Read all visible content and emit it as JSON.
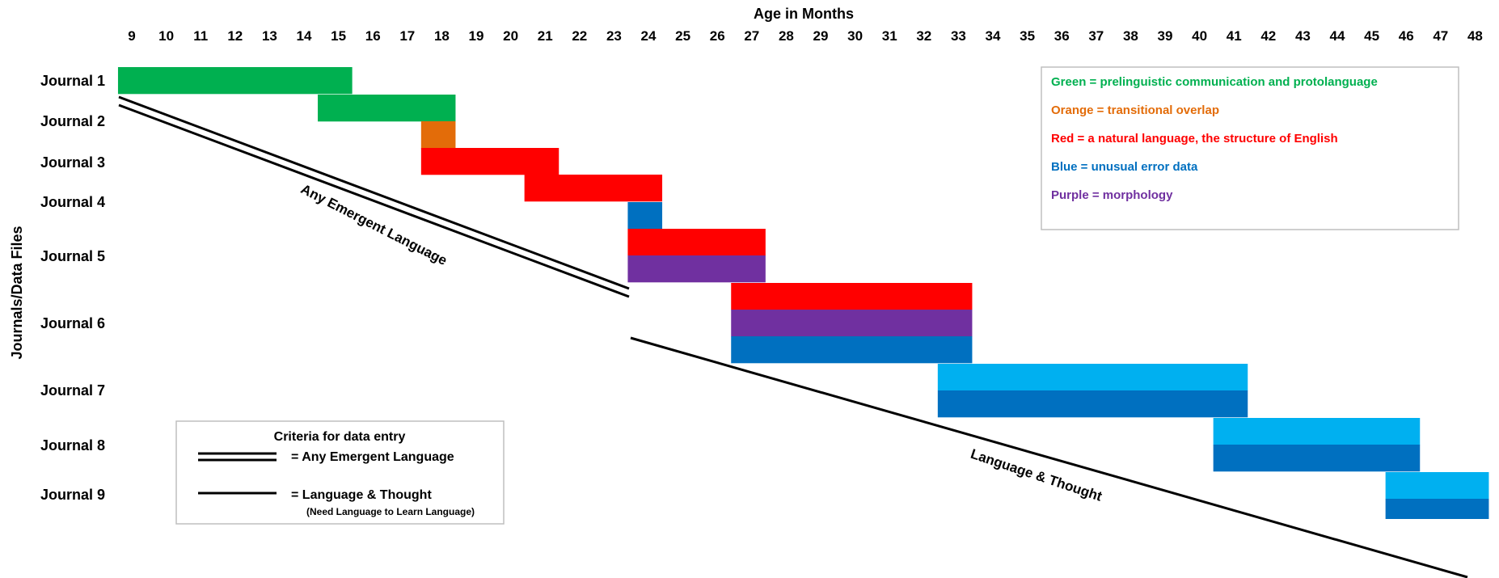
{
  "chart_data": {
    "type": "gantt",
    "title": "",
    "xlabel": "Age in Months",
    "ylabel": "Journals/Data Files",
    "x_ticks": [
      9,
      10,
      11,
      12,
      13,
      14,
      15,
      16,
      17,
      18,
      19,
      20,
      21,
      22,
      23,
      24,
      25,
      26,
      27,
      28,
      29,
      30,
      31,
      32,
      33,
      34,
      35,
      36,
      37,
      38,
      39,
      40,
      41,
      42,
      43,
      44,
      45,
      46,
      47,
      48
    ],
    "colors": {
      "green": "#00B050",
      "orange": "#E36C09",
      "red": "#FF0000",
      "blue": "#0070C0",
      "lightblue": "#00B0F0",
      "purple": "#7030A0"
    },
    "rows": [
      {
        "label": "Journal 1",
        "bars": [
          {
            "start": 8.6,
            "end": 15.4,
            "color": "green"
          }
        ]
      },
      {
        "label": "Journal 2",
        "bars": [
          {
            "start": 14.4,
            "end": 18.4,
            "color": "green"
          },
          {
            "start": 17.4,
            "end": 18.4,
            "color": "orange"
          }
        ]
      },
      {
        "label": "Journal 3",
        "bars": [
          {
            "start": 17.4,
            "end": 21.4,
            "color": "red"
          }
        ]
      },
      {
        "label": "Journal 4",
        "bars": [
          {
            "start": 20.4,
            "end": 24.4,
            "color": "red"
          },
          {
            "start": 23.4,
            "end": 24.4,
            "color": "blue"
          }
        ]
      },
      {
        "label": "Journal 5",
        "bars": [
          {
            "start": 23.4,
            "end": 27.4,
            "color": "red"
          },
          {
            "start": 23.4,
            "end": 27.4,
            "color": "purple"
          }
        ]
      },
      {
        "label": "Journal 6",
        "bars": [
          {
            "start": 26.4,
            "end": 33.4,
            "color": "red"
          },
          {
            "start": 26.4,
            "end": 33.4,
            "color": "purple"
          },
          {
            "start": 26.4,
            "end": 33.4,
            "color": "blue"
          }
        ]
      },
      {
        "label": "Journal 7",
        "bars": [
          {
            "start": 32.4,
            "end": 41.4,
            "color": "lightblue"
          },
          {
            "start": 32.4,
            "end": 41.4,
            "color": "blue"
          }
        ]
      },
      {
        "label": "Journal 8",
        "bars": [
          {
            "start": 40.4,
            "end": 46.4,
            "color": "lightblue"
          },
          {
            "start": 40.4,
            "end": 46.4,
            "color": "blue"
          }
        ]
      },
      {
        "label": "Journal 9",
        "bars": [
          {
            "start": 45.4,
            "end": 48.4,
            "color": "lightblue"
          },
          {
            "start": 45.4,
            "end": 48.4,
            "color": "blue"
          }
        ]
      }
    ],
    "annotations": {
      "double_line": {
        "label": "Any Emergent Language",
        "from_month": 8.6,
        "to_month": 23.4
      },
      "single_line": {
        "label": "Language & Thought",
        "from_month": 23.4,
        "to_month": 48
      }
    },
    "legend": {
      "items": [
        {
          "text": "Green = prelinguistic communication and protolanguage",
          "color": "#00B050"
        },
        {
          "text": "Orange = transitional overlap",
          "color": "#E36C09"
        },
        {
          "text": "Red = a natural language, the structure of English",
          "color": "#FF0000"
        },
        {
          "text": "Blue = unusual error data",
          "color": "#0070C0"
        },
        {
          "text": "Purple = morphology",
          "color": "#7030A0"
        }
      ]
    },
    "criteria": {
      "title": "Criteria for data entry",
      "double_label": "=  Any Emergent Language",
      "single_label": "= Language & Thought",
      "note": "(Need Language to Learn Language)"
    }
  }
}
